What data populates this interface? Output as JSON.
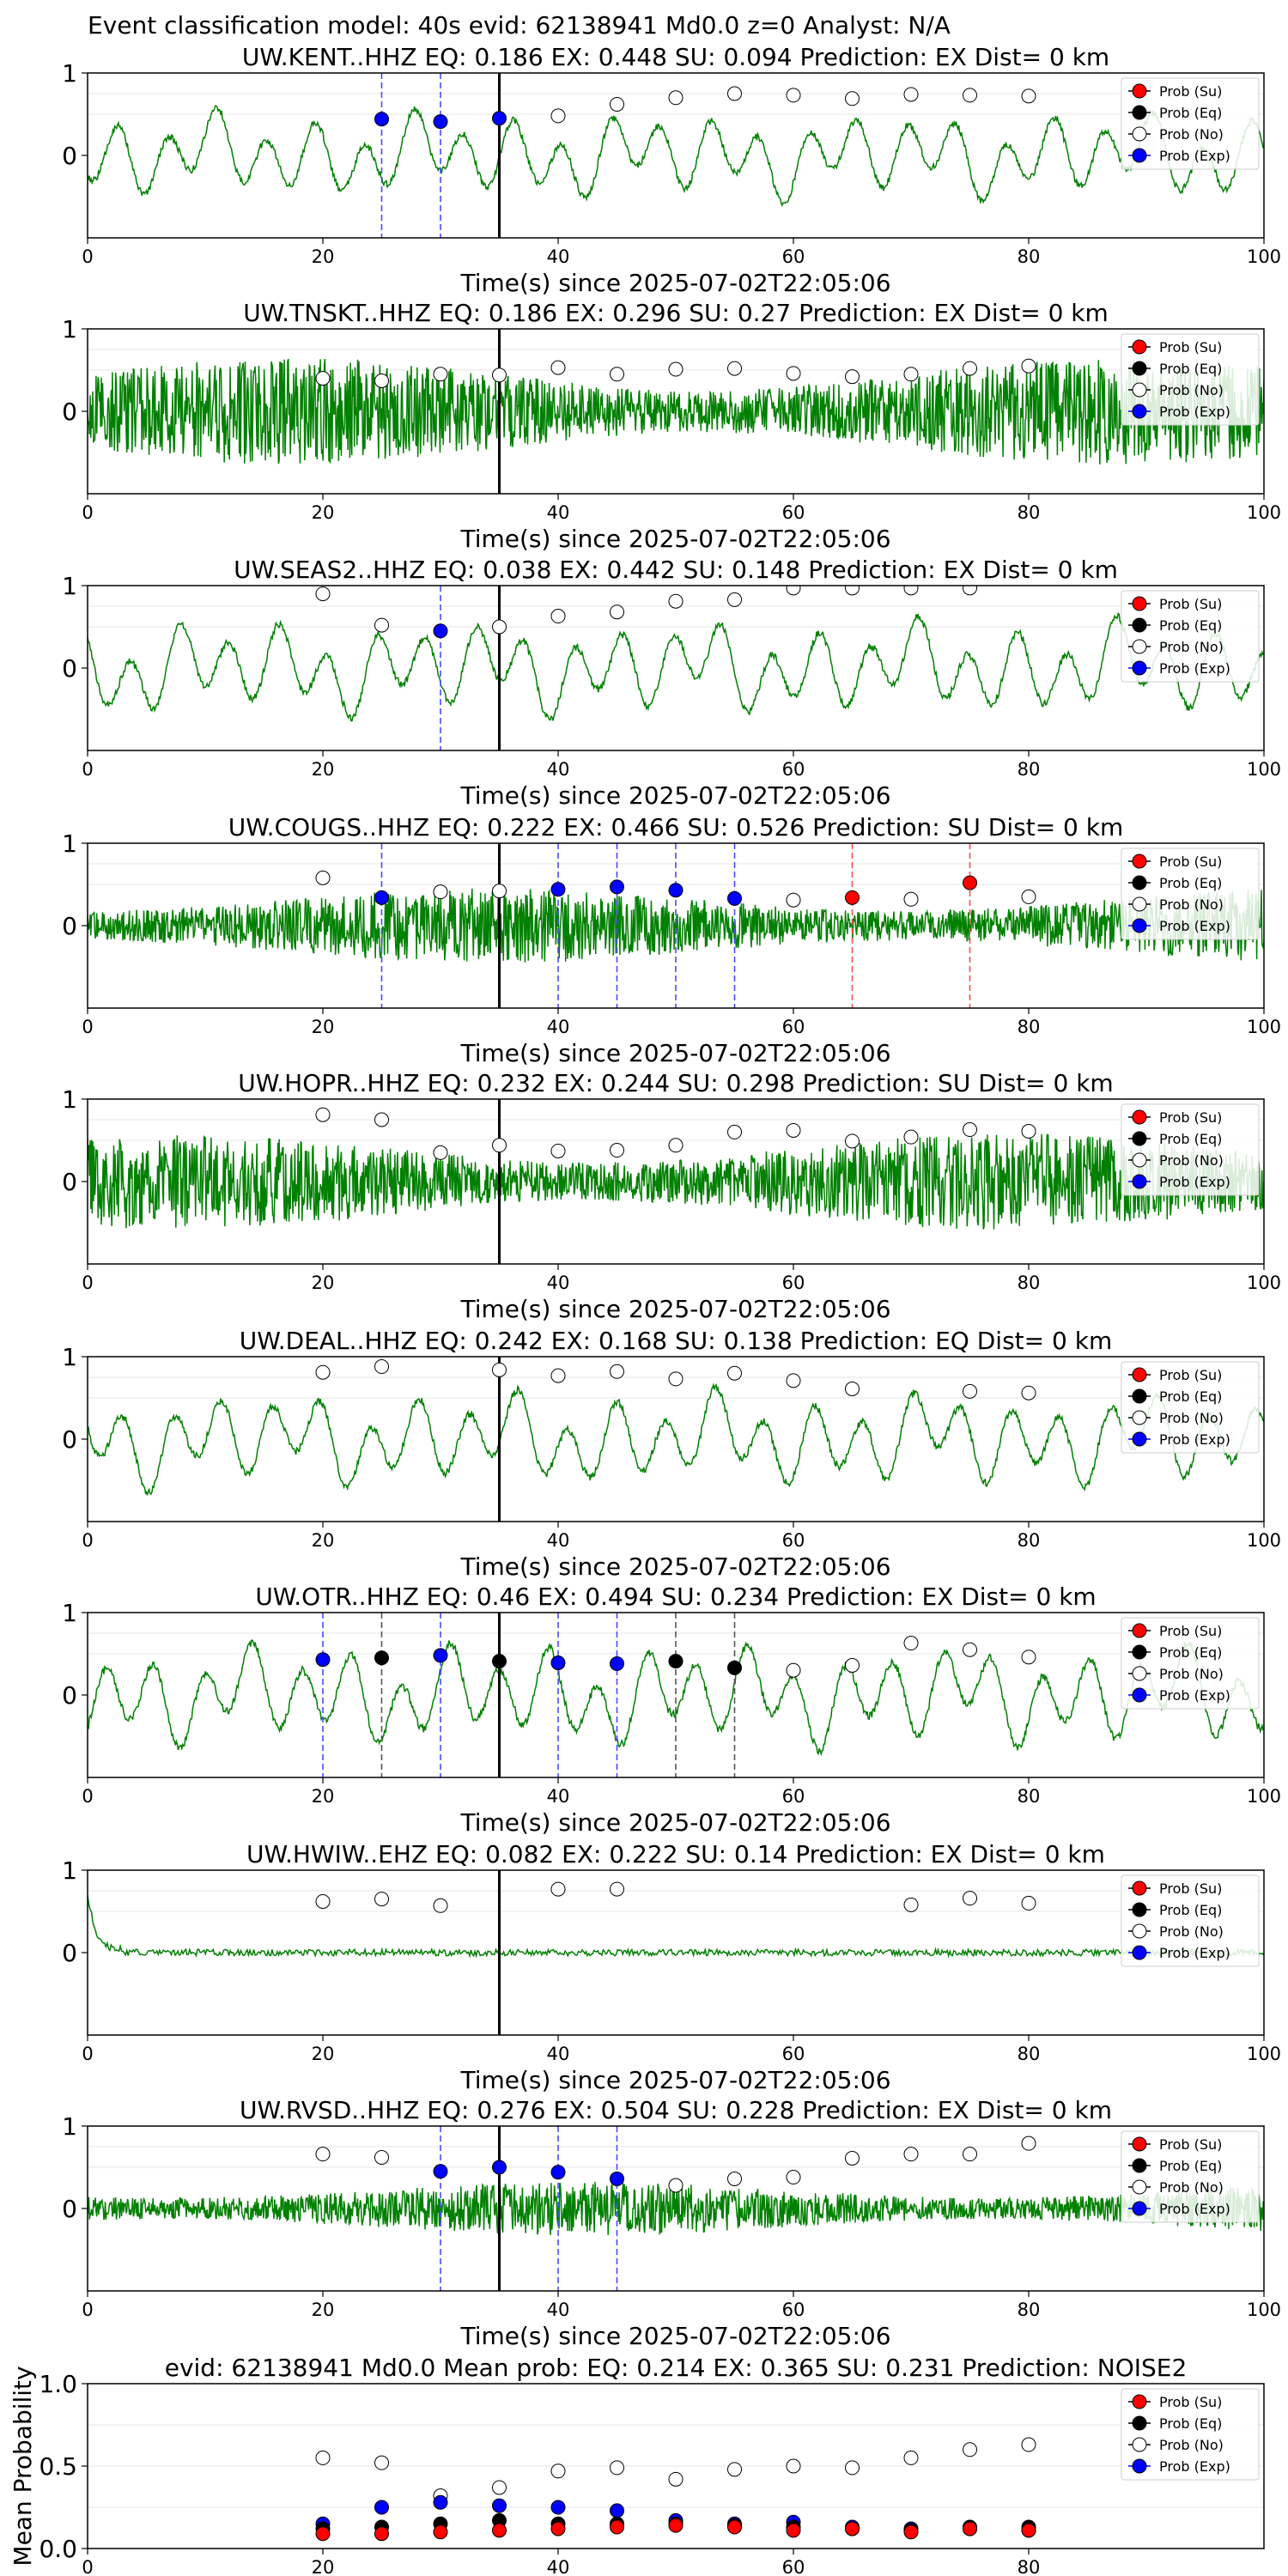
{
  "figure_title": "Event classification model: 40s evid: 62138941 Md0.0 z=0 Analyst: N/A",
  "legend": [
    "Prob (Su)",
    "Prob (Eq)",
    "Prob (No)",
    "Prob (Exp)"
  ],
  "colors": {
    "su": "#ff0000",
    "eq": "#000000",
    "no": "#ffffff",
    "exp": "#0000ff",
    "trace": "#008000",
    "su_line": "#ff4d4d",
    "eq_line": "#555555",
    "exp_line": "#4a4aff"
  },
  "chart_data": [
    {
      "type": "line",
      "title": "UW.KENT..HHZ   EQ: 0.186  EX: 0.448  SU: 0.094   Prediction: EX    Dist= 0 km",
      "xlabel": "Time(s) since 2025-07-02T22:05:06",
      "xlim": [
        0,
        100
      ],
      "ylim": [
        -1,
        1
      ],
      "xticks": [
        0,
        20,
        40,
        60,
        80,
        100
      ],
      "yticks": [
        0,
        1
      ],
      "marker_line": 35,
      "trace_style": "smooth",
      "trace_amp": 0.55,
      "points": [
        {
          "x": 25,
          "y": 0.44,
          "cls": "exp"
        },
        {
          "x": 30,
          "y": 0.41,
          "cls": "exp"
        },
        {
          "x": 35,
          "y": 0.45,
          "cls": "exp"
        },
        {
          "x": 40,
          "y": 0.48,
          "cls": "no"
        },
        {
          "x": 45,
          "y": 0.62,
          "cls": "no"
        },
        {
          "x": 50,
          "y": 0.7,
          "cls": "no"
        },
        {
          "x": 55,
          "y": 0.75,
          "cls": "no"
        },
        {
          "x": 60,
          "y": 0.73,
          "cls": "no"
        },
        {
          "x": 65,
          "y": 0.69,
          "cls": "no"
        },
        {
          "x": 70,
          "y": 0.74,
          "cls": "no"
        },
        {
          "x": 75,
          "y": 0.73,
          "cls": "no"
        },
        {
          "x": 80,
          "y": 0.72,
          "cls": "no"
        }
      ],
      "vlines": [
        {
          "x": 25,
          "cls": "exp"
        },
        {
          "x": 30,
          "cls": "exp"
        }
      ]
    },
    {
      "type": "line",
      "title": "UW.TNSKT..HHZ   EQ: 0.186  EX: 0.296  SU: 0.27   Prediction: EX    Dist= 0 km",
      "xlabel": "Time(s) since 2025-07-02T22:05:06",
      "xlim": [
        0,
        100
      ],
      "ylim": [
        -1,
        1
      ],
      "xticks": [
        0,
        20,
        40,
        60,
        80,
        100
      ],
      "yticks": [
        0,
        1
      ],
      "marker_line": 35,
      "trace_style": "noisy",
      "trace_amp": 0.5,
      "points": [
        {
          "x": 20,
          "y": 0.4,
          "cls": "no"
        },
        {
          "x": 25,
          "y": 0.37,
          "cls": "no"
        },
        {
          "x": 30,
          "y": 0.45,
          "cls": "no"
        },
        {
          "x": 35,
          "y": 0.44,
          "cls": "no"
        },
        {
          "x": 40,
          "y": 0.53,
          "cls": "no"
        },
        {
          "x": 45,
          "y": 0.45,
          "cls": "no"
        },
        {
          "x": 50,
          "y": 0.51,
          "cls": "no"
        },
        {
          "x": 55,
          "y": 0.52,
          "cls": "no"
        },
        {
          "x": 60,
          "y": 0.46,
          "cls": "no"
        },
        {
          "x": 65,
          "y": 0.42,
          "cls": "no"
        },
        {
          "x": 70,
          "y": 0.45,
          "cls": "no"
        },
        {
          "x": 75,
          "y": 0.52,
          "cls": "no"
        },
        {
          "x": 80,
          "y": 0.55,
          "cls": "no"
        }
      ],
      "vlines": []
    },
    {
      "type": "line",
      "title": "UW.SEAS2..HHZ   EQ: 0.038  EX: 0.442  SU: 0.148   Prediction: EX    Dist= 0 km",
      "xlabel": "Time(s) since 2025-07-02T22:05:06",
      "xlim": [
        0,
        100
      ],
      "ylim": [
        -1,
        1
      ],
      "xticks": [
        0,
        20,
        40,
        60,
        80,
        100
      ],
      "yticks": [
        0,
        1
      ],
      "marker_line": 35,
      "trace_style": "smooth",
      "trace_amp": 0.6,
      "points": [
        {
          "x": 20,
          "y": 0.9,
          "cls": "no"
        },
        {
          "x": 25,
          "y": 0.52,
          "cls": "no"
        },
        {
          "x": 30,
          "y": 0.45,
          "cls": "exp"
        },
        {
          "x": 35,
          "y": 0.5,
          "cls": "no"
        },
        {
          "x": 40,
          "y": 0.63,
          "cls": "no"
        },
        {
          "x": 45,
          "y": 0.68,
          "cls": "no"
        },
        {
          "x": 50,
          "y": 0.81,
          "cls": "no"
        },
        {
          "x": 55,
          "y": 0.83,
          "cls": "no"
        },
        {
          "x": 60,
          "y": 0.97,
          "cls": "no"
        },
        {
          "x": 65,
          "y": 0.97,
          "cls": "no"
        },
        {
          "x": 70,
          "y": 0.97,
          "cls": "no"
        },
        {
          "x": 75,
          "y": 0.97,
          "cls": "no"
        }
      ],
      "vlines": [
        {
          "x": 30,
          "cls": "exp"
        }
      ]
    },
    {
      "type": "line",
      "title": "UW.COUGS..HHZ   EQ: 0.222  EX: 0.466  SU: 0.526   Prediction: SU    Dist= 0 km",
      "xlabel": "Time(s) since 2025-07-02T22:05:06",
      "xlim": [
        0,
        100
      ],
      "ylim": [
        -1,
        1
      ],
      "xticks": [
        0,
        20,
        40,
        60,
        80,
        100
      ],
      "yticks": [
        0,
        1
      ],
      "marker_line": 35,
      "trace_style": "noisy",
      "trace_amp": 0.35,
      "points": [
        {
          "x": 20,
          "y": 0.58,
          "cls": "no"
        },
        {
          "x": 25,
          "y": 0.34,
          "cls": "exp"
        },
        {
          "x": 30,
          "y": 0.41,
          "cls": "no"
        },
        {
          "x": 35,
          "y": 0.42,
          "cls": "no"
        },
        {
          "x": 40,
          "y": 0.44,
          "cls": "exp"
        },
        {
          "x": 45,
          "y": 0.47,
          "cls": "exp"
        },
        {
          "x": 50,
          "y": 0.43,
          "cls": "exp"
        },
        {
          "x": 55,
          "y": 0.33,
          "cls": "exp"
        },
        {
          "x": 60,
          "y": 0.31,
          "cls": "no"
        },
        {
          "x": 65,
          "y": 0.34,
          "cls": "su"
        },
        {
          "x": 70,
          "y": 0.32,
          "cls": "no"
        },
        {
          "x": 75,
          "y": 0.52,
          "cls": "su"
        },
        {
          "x": 80,
          "y": 0.35,
          "cls": "no"
        }
      ],
      "vlines": [
        {
          "x": 25,
          "cls": "exp"
        },
        {
          "x": 40,
          "cls": "exp"
        },
        {
          "x": 45,
          "cls": "exp"
        },
        {
          "x": 50,
          "cls": "exp"
        },
        {
          "x": 55,
          "cls": "exp"
        },
        {
          "x": 65,
          "cls": "su"
        },
        {
          "x": 75,
          "cls": "su"
        }
      ]
    },
    {
      "type": "line",
      "title": "UW.HOPR..HHZ   EQ: 0.232  EX: 0.244  SU: 0.298   Prediction: SU    Dist= 0 km",
      "xlabel": "Time(s) since 2025-07-02T22:05:06",
      "xlim": [
        0,
        100
      ],
      "ylim": [
        -1,
        1
      ],
      "xticks": [
        0,
        20,
        40,
        60,
        80,
        100
      ],
      "yticks": [
        0,
        1
      ],
      "marker_line": 35,
      "trace_style": "noisy",
      "trace_amp": 0.45,
      "points": [
        {
          "x": 20,
          "y": 0.81,
          "cls": "no"
        },
        {
          "x": 25,
          "y": 0.75,
          "cls": "no"
        },
        {
          "x": 30,
          "y": 0.35,
          "cls": "no"
        },
        {
          "x": 35,
          "y": 0.44,
          "cls": "no"
        },
        {
          "x": 40,
          "y": 0.37,
          "cls": "no"
        },
        {
          "x": 45,
          "y": 0.38,
          "cls": "no"
        },
        {
          "x": 50,
          "y": 0.44,
          "cls": "no"
        },
        {
          "x": 55,
          "y": 0.6,
          "cls": "no"
        },
        {
          "x": 60,
          "y": 0.62,
          "cls": "no"
        },
        {
          "x": 65,
          "y": 0.49,
          "cls": "no"
        },
        {
          "x": 70,
          "y": 0.54,
          "cls": "no"
        },
        {
          "x": 75,
          "y": 0.63,
          "cls": "no"
        },
        {
          "x": 80,
          "y": 0.61,
          "cls": "no"
        }
      ],
      "vlines": []
    },
    {
      "type": "line",
      "title": "UW.DEAL..HHZ   EQ: 0.242  EX: 0.168  SU: 0.138   Prediction: EQ    Dist= 0 km",
      "xlabel": "Time(s) since 2025-07-02T22:05:06",
      "xlim": [
        0,
        100
      ],
      "ylim": [
        -1,
        1
      ],
      "xticks": [
        0,
        20,
        40,
        60,
        80,
        100
      ],
      "yticks": [
        0,
        1
      ],
      "marker_line": 35,
      "trace_style": "smooth",
      "trace_amp": 0.6,
      "points": [
        {
          "x": 20,
          "y": 0.81,
          "cls": "no"
        },
        {
          "x": 25,
          "y": 0.88,
          "cls": "no"
        },
        {
          "x": 35,
          "y": 0.84,
          "cls": "no"
        },
        {
          "x": 40,
          "y": 0.77,
          "cls": "no"
        },
        {
          "x": 45,
          "y": 0.82,
          "cls": "no"
        },
        {
          "x": 50,
          "y": 0.73,
          "cls": "no"
        },
        {
          "x": 55,
          "y": 0.8,
          "cls": "no"
        },
        {
          "x": 60,
          "y": 0.71,
          "cls": "no"
        },
        {
          "x": 65,
          "y": 0.61,
          "cls": "no"
        },
        {
          "x": 75,
          "y": 0.58,
          "cls": "no"
        },
        {
          "x": 80,
          "y": 0.56,
          "cls": "no"
        }
      ],
      "vlines": []
    },
    {
      "type": "line",
      "title": "UW.OTR..HHZ   EQ: 0.46  EX: 0.494  SU: 0.234   Prediction: EX    Dist= 0 km",
      "xlabel": "Time(s) since 2025-07-02T22:05:06",
      "xlim": [
        0,
        100
      ],
      "ylim": [
        -1,
        1
      ],
      "xticks": [
        0,
        20,
        40,
        60,
        80,
        100
      ],
      "yticks": [
        0,
        1
      ],
      "marker_line": 35,
      "trace_style": "smooth",
      "trace_amp": 0.65,
      "points": [
        {
          "x": 20,
          "y": 0.43,
          "cls": "exp"
        },
        {
          "x": 25,
          "y": 0.45,
          "cls": "eq"
        },
        {
          "x": 30,
          "y": 0.48,
          "cls": "exp"
        },
        {
          "x": 35,
          "y": 0.41,
          "cls": "eq"
        },
        {
          "x": 40,
          "y": 0.39,
          "cls": "exp"
        },
        {
          "x": 45,
          "y": 0.38,
          "cls": "exp"
        },
        {
          "x": 50,
          "y": 0.41,
          "cls": "eq"
        },
        {
          "x": 55,
          "y": 0.33,
          "cls": "eq"
        },
        {
          "x": 60,
          "y": 0.3,
          "cls": "no"
        },
        {
          "x": 65,
          "y": 0.36,
          "cls": "no"
        },
        {
          "x": 70,
          "y": 0.63,
          "cls": "no"
        },
        {
          "x": 75,
          "y": 0.55,
          "cls": "no"
        },
        {
          "x": 80,
          "y": 0.46,
          "cls": "no"
        }
      ],
      "vlines": [
        {
          "x": 20,
          "cls": "exp"
        },
        {
          "x": 25,
          "cls": "eq"
        },
        {
          "x": 30,
          "cls": "exp"
        },
        {
          "x": 40,
          "cls": "exp"
        },
        {
          "x": 45,
          "cls": "exp"
        },
        {
          "x": 50,
          "cls": "eq"
        },
        {
          "x": 55,
          "cls": "eq"
        }
      ]
    },
    {
      "type": "line",
      "title": "UW.HWIW..EHZ   EQ: 0.082  EX: 0.222  SU: 0.14   Prediction: EX    Dist= 0 km",
      "xlabel": "Time(s) since 2025-07-02T22:05:06",
      "xlim": [
        0,
        100
      ],
      "ylim": [
        -1,
        1
      ],
      "xticks": [
        0,
        20,
        40,
        60,
        80,
        100
      ],
      "yticks": [
        0,
        1
      ],
      "marker_line": 35,
      "trace_style": "flat",
      "trace_amp": 0.04,
      "points": [
        {
          "x": 20,
          "y": 0.62,
          "cls": "no"
        },
        {
          "x": 25,
          "y": 0.65,
          "cls": "no"
        },
        {
          "x": 30,
          "y": 0.57,
          "cls": "no"
        },
        {
          "x": 40,
          "y": 0.77,
          "cls": "no"
        },
        {
          "x": 45,
          "y": 0.77,
          "cls": "no"
        },
        {
          "x": 70,
          "y": 0.58,
          "cls": "no"
        },
        {
          "x": 75,
          "y": 0.66,
          "cls": "no"
        },
        {
          "x": 80,
          "y": 0.6,
          "cls": "no"
        }
      ],
      "vlines": []
    },
    {
      "type": "line",
      "title": "UW.RVSD..HHZ   EQ: 0.276  EX: 0.504  SU: 0.228   Prediction: EX    Dist= 0 km",
      "xlabel": "Time(s) since 2025-07-02T22:05:06",
      "xlim": [
        0,
        100
      ],
      "ylim": [
        -1,
        1
      ],
      "xticks": [
        0,
        20,
        40,
        60,
        80,
        100
      ],
      "yticks": [
        0,
        1
      ],
      "marker_line": 35,
      "trace_style": "noisy",
      "trace_amp": 0.25,
      "points": [
        {
          "x": 20,
          "y": 0.66,
          "cls": "no"
        },
        {
          "x": 25,
          "y": 0.62,
          "cls": "no"
        },
        {
          "x": 30,
          "y": 0.45,
          "cls": "exp"
        },
        {
          "x": 35,
          "y": 0.5,
          "cls": "exp"
        },
        {
          "x": 40,
          "y": 0.44,
          "cls": "exp"
        },
        {
          "x": 45,
          "y": 0.36,
          "cls": "exp"
        },
        {
          "x": 50,
          "y": 0.28,
          "cls": "no"
        },
        {
          "x": 55,
          "y": 0.36,
          "cls": "no"
        },
        {
          "x": 60,
          "y": 0.38,
          "cls": "no"
        },
        {
          "x": 65,
          "y": 0.61,
          "cls": "no"
        },
        {
          "x": 70,
          "y": 0.66,
          "cls": "no"
        },
        {
          "x": 75,
          "y": 0.66,
          "cls": "no"
        },
        {
          "x": 80,
          "y": 0.79,
          "cls": "no"
        }
      ],
      "vlines": [
        {
          "x": 30,
          "cls": "exp"
        },
        {
          "x": 40,
          "cls": "exp"
        },
        {
          "x": 45,
          "cls": "exp"
        }
      ]
    },
    {
      "type": "scatter",
      "title": "evid: 62138941  Md0.0   Mean prob:    EQ: 0.214  EX: 0.365  SU: 0.231   Prediction: NOISE2",
      "ylabel": "Mean Probability",
      "xlim": [
        0,
        100
      ],
      "ylim": [
        0,
        1
      ],
      "xticks": [
        0,
        20,
        40,
        60,
        80
      ],
      "yticks": [
        0.0,
        0.5,
        1.0
      ],
      "x": [
        20,
        25,
        30,
        35,
        40,
        45,
        50,
        55,
        60,
        65,
        70,
        75,
        80
      ],
      "series": [
        {
          "cls": "no",
          "values": [
            0.55,
            0.52,
            0.32,
            0.37,
            0.47,
            0.49,
            0.42,
            0.48,
            0.5,
            0.49,
            0.55,
            0.6,
            0.63
          ]
        },
        {
          "cls": "exp",
          "values": [
            0.15,
            0.25,
            0.28,
            0.26,
            0.25,
            0.23,
            0.17,
            0.15,
            0.16,
            0.13,
            0.12,
            0.12,
            0.11
          ]
        },
        {
          "cls": "eq",
          "values": [
            0.12,
            0.13,
            0.15,
            0.17,
            0.15,
            0.15,
            0.15,
            0.14,
            0.13,
            0.12,
            0.11,
            0.13,
            0.13
          ]
        },
        {
          "cls": "su",
          "values": [
            0.09,
            0.09,
            0.1,
            0.11,
            0.12,
            0.13,
            0.14,
            0.13,
            0.11,
            0.12,
            0.1,
            0.12,
            0.11
          ]
        }
      ]
    }
  ]
}
